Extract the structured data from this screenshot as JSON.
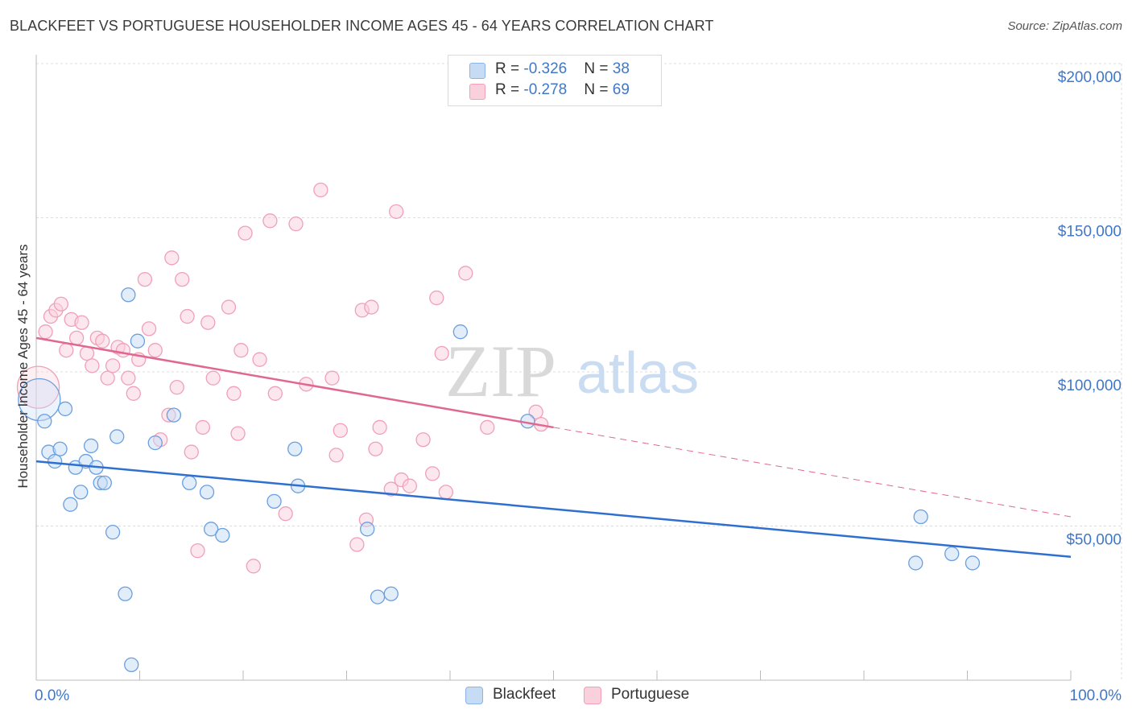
{
  "title": "BLACKFEET VS PORTUGUESE HOUSEHOLDER INCOME AGES 45 - 64 YEARS CORRELATION CHART",
  "source": "Source: ZipAtlas.com",
  "watermark": {
    "zip": "ZIP",
    "atlas": "atlas"
  },
  "legend": {
    "rows": [
      {
        "r_label": "R = ",
        "r_value": "-0.326",
        "n_label": "N = ",
        "n_value": "38",
        "color": "#8ab4e8"
      },
      {
        "r_label": "R = ",
        "r_value": "-0.278",
        "n_label": "N = ",
        "n_value": "69",
        "color": "#f0a0b8"
      }
    ]
  },
  "bottom_legend": {
    "blackfeet": "Blackfeet",
    "portuguese": "Portuguese"
  },
  "chart_data": {
    "type": "scatter",
    "xlabel": "",
    "ylabel": "Householder Income Ages 45 - 64 years",
    "xlim": [
      0,
      100
    ],
    "ylim": [
      0,
      200000
    ],
    "x_tick_labels": {
      "left": "0.0%",
      "right": "100.0%"
    },
    "y_ticks": [
      {
        "value": 50000,
        "label": "$50,000"
      },
      {
        "value": 100000,
        "label": "$100,000"
      },
      {
        "value": 150000,
        "label": "$150,000"
      },
      {
        "value": 200000,
        "label": "$200,000"
      }
    ],
    "grid": "horizontal dashed",
    "series": [
      {
        "name": "Blackfeet",
        "color": "#8ab4e8",
        "line_color": "#2f6fd0",
        "trend": {
          "x0": 0,
          "y0": 71000,
          "x1": 100,
          "y1": 40000
        },
        "points": [
          [
            0.3,
            91000
          ],
          [
            0.8,
            84000
          ],
          [
            1.2,
            74000
          ],
          [
            1.8,
            71000
          ],
          [
            2.3,
            75000
          ],
          [
            2.8,
            88000
          ],
          [
            3.3,
            57000
          ],
          [
            3.8,
            69000
          ],
          [
            4.3,
            61000
          ],
          [
            4.8,
            71000
          ],
          [
            5.3,
            76000
          ],
          [
            5.8,
            69000
          ],
          [
            6.2,
            64000
          ],
          [
            6.6,
            64000
          ],
          [
            7.4,
            48000
          ],
          [
            7.8,
            79000
          ],
          [
            8.6,
            28000
          ],
          [
            8.9,
            125000
          ],
          [
            9.2,
            5000
          ],
          [
            9.8,
            110000
          ],
          [
            11.5,
            77000
          ],
          [
            13.3,
            86000
          ],
          [
            14.8,
            64000
          ],
          [
            16.5,
            61000
          ],
          [
            16.9,
            49000
          ],
          [
            18.0,
            47000
          ],
          [
            23.0,
            58000
          ],
          [
            25.0,
            75000
          ],
          [
            25.3,
            63000
          ],
          [
            32.0,
            49000
          ],
          [
            33.0,
            27000
          ],
          [
            34.3,
            28000
          ],
          [
            41.0,
            113000
          ],
          [
            47.5,
            84000
          ],
          [
            85.0,
            38000
          ],
          [
            85.5,
            53000
          ],
          [
            88.5,
            41000
          ],
          [
            90.5,
            38000
          ]
        ]
      },
      {
        "name": "Portuguese",
        "color": "#f0a0b8",
        "line_color": "#e06890",
        "trend": {
          "x0": 0,
          "y0": 111000,
          "x1": 50,
          "y1": 82000,
          "dashed_to": {
            "x": 100,
            "y": 53000
          }
        },
        "points": [
          [
            0.2,
            95000
          ],
          [
            0.9,
            113000
          ],
          [
            1.4,
            118000
          ],
          [
            1.9,
            120000
          ],
          [
            2.4,
            122000
          ],
          [
            2.9,
            107000
          ],
          [
            3.4,
            117000
          ],
          [
            3.9,
            111000
          ],
          [
            4.4,
            116000
          ],
          [
            4.9,
            106000
          ],
          [
            5.4,
            102000
          ],
          [
            5.9,
            111000
          ],
          [
            6.4,
            110000
          ],
          [
            6.9,
            98000
          ],
          [
            7.4,
            102000
          ],
          [
            7.9,
            108000
          ],
          [
            8.4,
            107000
          ],
          [
            8.9,
            98000
          ],
          [
            9.4,
            93000
          ],
          [
            9.9,
            104000
          ],
          [
            10.5,
            130000
          ],
          [
            10.9,
            114000
          ],
          [
            11.5,
            107000
          ],
          [
            12.0,
            78000
          ],
          [
            12.8,
            86000
          ],
          [
            13.1,
            137000
          ],
          [
            13.6,
            95000
          ],
          [
            14.1,
            130000
          ],
          [
            14.6,
            118000
          ],
          [
            15.0,
            74000
          ],
          [
            15.6,
            42000
          ],
          [
            16.1,
            82000
          ],
          [
            16.6,
            116000
          ],
          [
            17.1,
            98000
          ],
          [
            18.6,
            121000
          ],
          [
            19.1,
            93000
          ],
          [
            19.5,
            80000
          ],
          [
            19.8,
            107000
          ],
          [
            20.2,
            145000
          ],
          [
            21.0,
            37000
          ],
          [
            21.6,
            104000
          ],
          [
            22.6,
            149000
          ],
          [
            23.1,
            93000
          ],
          [
            24.1,
            54000
          ],
          [
            25.1,
            148000
          ],
          [
            26.1,
            96000
          ],
          [
            27.5,
            159000
          ],
          [
            28.6,
            98000
          ],
          [
            29.0,
            73000
          ],
          [
            29.4,
            81000
          ],
          [
            31.0,
            44000
          ],
          [
            31.5,
            120000
          ],
          [
            31.9,
            52000
          ],
          [
            32.4,
            121000
          ],
          [
            32.8,
            75000
          ],
          [
            33.2,
            82000
          ],
          [
            34.3,
            62000
          ],
          [
            34.8,
            152000
          ],
          [
            35.3,
            65000
          ],
          [
            36.1,
            63000
          ],
          [
            37.4,
            78000
          ],
          [
            38.3,
            67000
          ],
          [
            38.7,
            124000
          ],
          [
            39.2,
            106000
          ],
          [
            39.6,
            61000
          ],
          [
            41.5,
            132000
          ],
          [
            43.6,
            82000
          ],
          [
            48.3,
            87000
          ],
          [
            48.8,
            83000
          ]
        ]
      }
    ]
  }
}
